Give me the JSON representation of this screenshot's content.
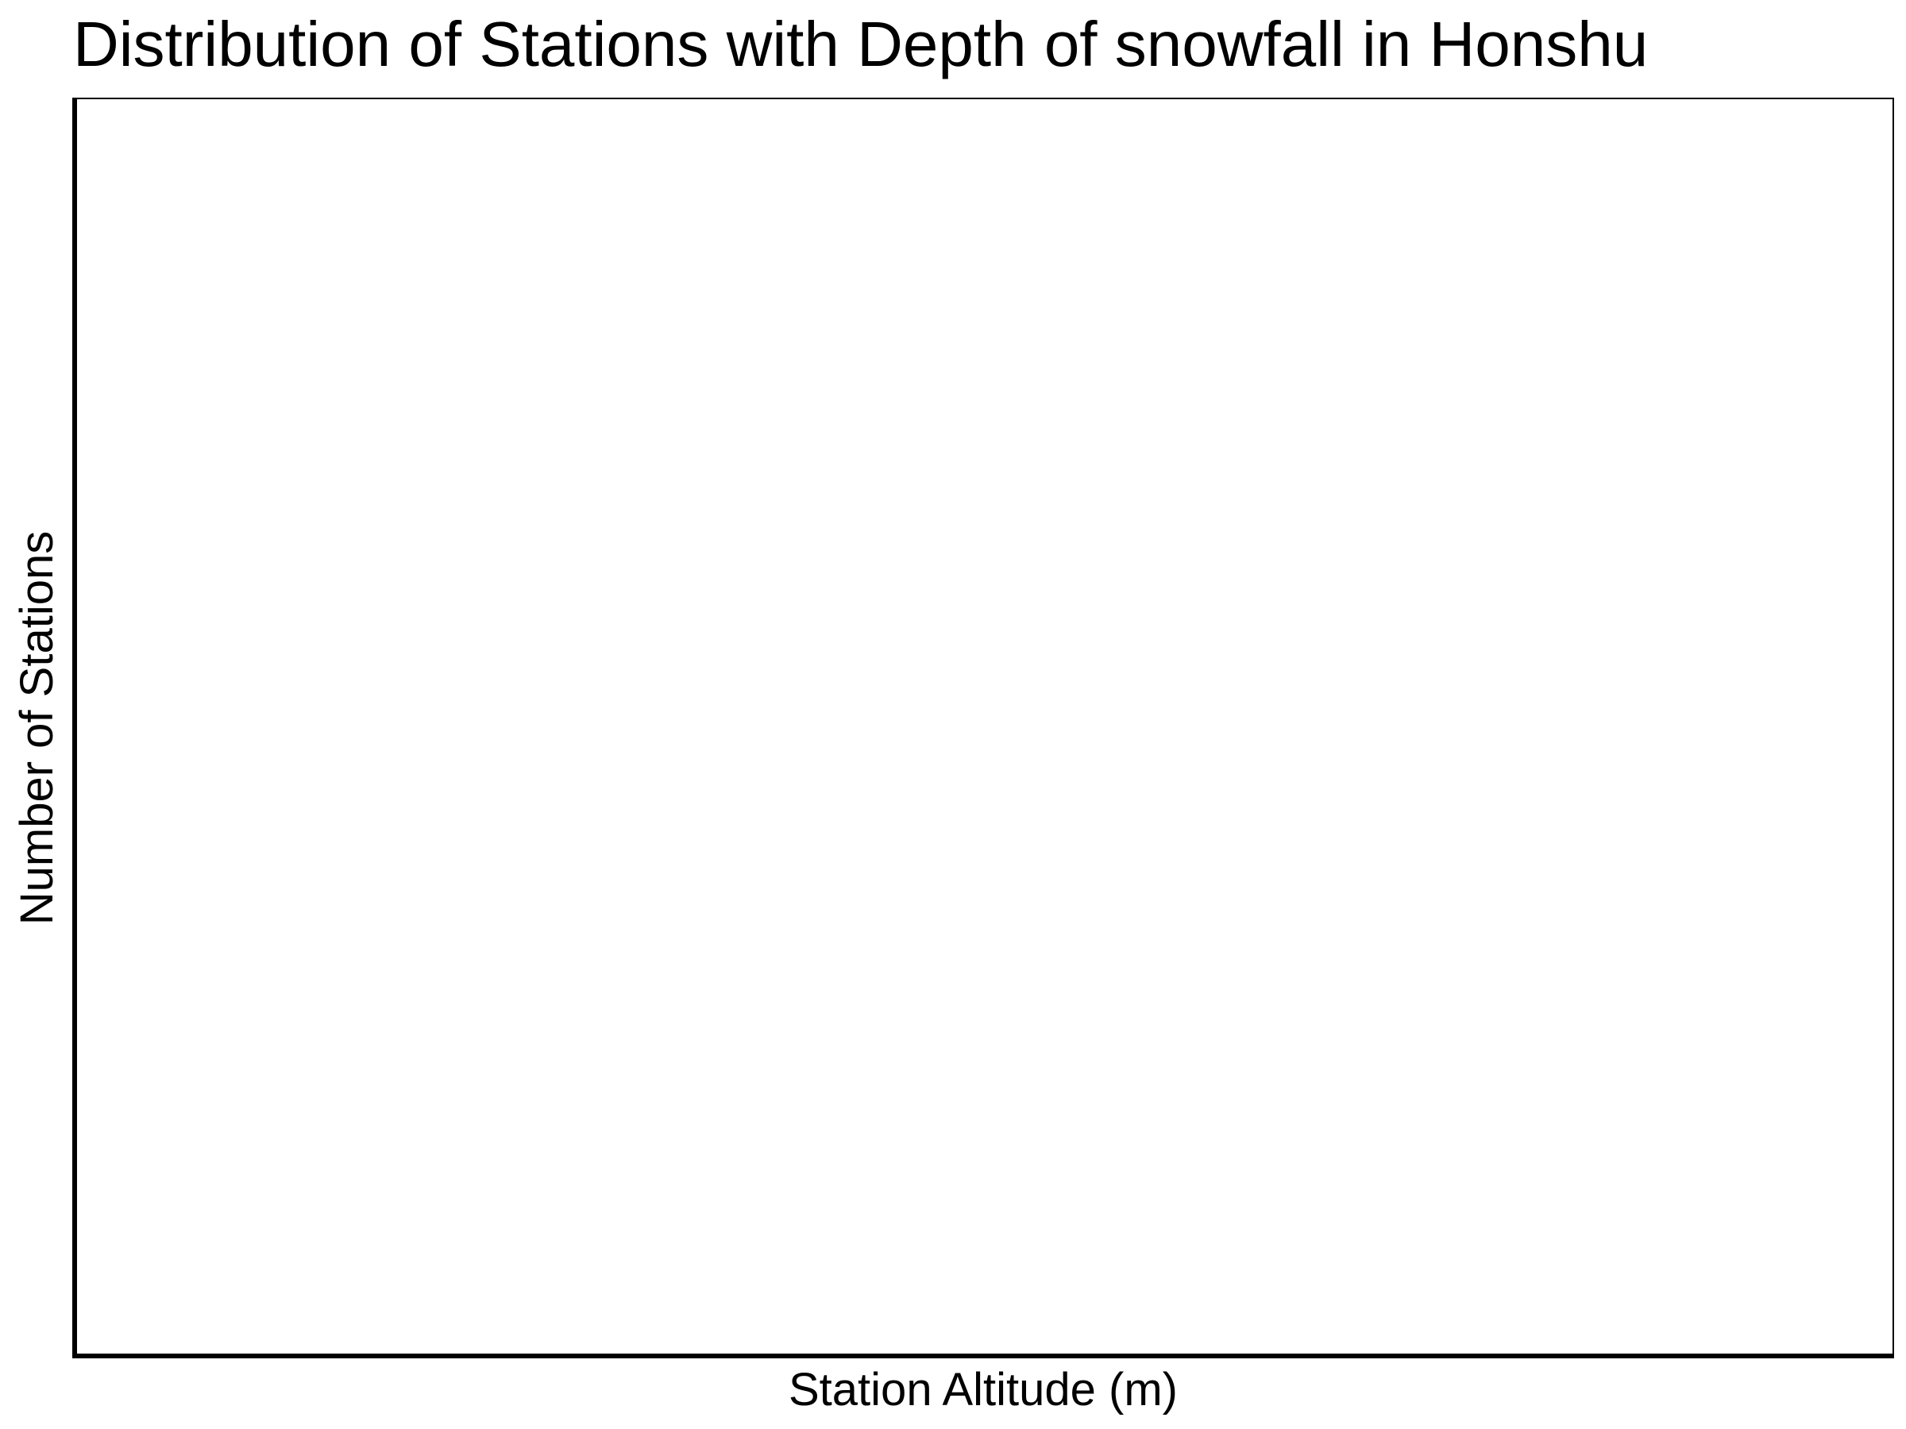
{
  "chart_data": {
    "type": "bar",
    "title": "Distribution of Stations with Depth of snowfall in Honshu",
    "xlabel": "Station Altitude (m)",
    "ylabel": "Number of Stations",
    "categories": [],
    "values": [],
    "grid": false,
    "legend": "none"
  }
}
